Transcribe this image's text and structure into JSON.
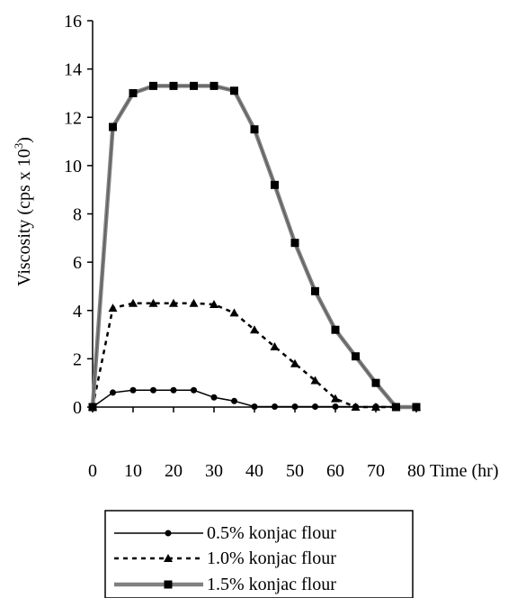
{
  "chart_data": {
    "type": "line",
    "xlabel": "Time (hr)",
    "ylabel": "Viscosity (cps x 10",
    "ylabel_superscript": "3",
    "ylabel_close": ")",
    "xlim": [
      0,
      80
    ],
    "ylim": [
      0,
      16
    ],
    "xticks": [
      "0",
      "10",
      "20",
      "30",
      "40",
      "50",
      "60",
      "70",
      "80"
    ],
    "yticks": [
      "0",
      "2",
      "4",
      "6",
      "8",
      "10",
      "12",
      "14",
      "16"
    ],
    "grid": false,
    "legend_position": "bottom",
    "x": [
      0,
      5,
      10,
      15,
      20,
      25,
      30,
      35,
      40,
      45,
      50,
      55,
      60,
      65,
      70,
      75,
      80
    ],
    "series": [
      {
        "name": "0.5% konjac flour",
        "values": [
          0,
          0.6,
          0.7,
          0.7,
          0.7,
          0.7,
          0.4,
          0.25,
          0.02,
          0.02,
          0.02,
          0.02,
          0.02,
          0.02,
          0.02,
          0.02,
          0.02
        ],
        "marker": "circle",
        "style": "solid",
        "color": "#000000"
      },
      {
        "name": "1.0% konjac flour",
        "values": [
          0,
          4.1,
          4.3,
          4.3,
          4.3,
          4.3,
          4.25,
          3.9,
          3.2,
          2.5,
          1.8,
          1.1,
          0.35,
          0.0,
          0.0,
          0.0,
          0.0
        ],
        "marker": "triangle",
        "style": "dashed",
        "color": "#000000"
      },
      {
        "name": "1.5% konjac flour",
        "values": [
          0,
          11.6,
          13.0,
          13.3,
          13.3,
          13.3,
          13.3,
          13.1,
          11.5,
          9.2,
          6.8,
          4.8,
          3.2,
          2.1,
          1.0,
          0.0,
          0.0
        ],
        "marker": "square",
        "style": "solid",
        "color": "#808080"
      }
    ]
  }
}
